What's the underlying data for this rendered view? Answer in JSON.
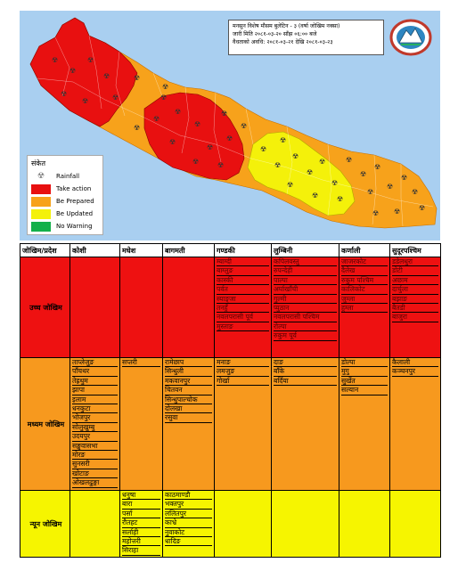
{
  "bulletin": {
    "line1": "मनसुन विशेष मौसम बुलेटिन - ३ (वर्षा जोखिम नक्सा)",
    "line2": "जारी मिति २०८१-०३-२० साँझ ०६:०० बजे",
    "line3": "वैधताको अवधि: २०८१-०३-२१ देखि २०८१-०३-२३"
  },
  "legend": {
    "title": "संकेत",
    "items": [
      {
        "label": "Rainfall",
        "icon": "rainfall-hazard-icon"
      },
      {
        "label": "Take action",
        "color": "#e81010"
      },
      {
        "label": "Be Prepared",
        "color": "#f7a21b"
      },
      {
        "label": "Be Updated",
        "color": "#f4f10a"
      },
      {
        "label": "No Warning",
        "color": "#13b04a"
      }
    ]
  },
  "colors": {
    "sea": "#a9cff0",
    "take_action": "#e81010",
    "be_prepared": "#f7a21b",
    "be_updated": "#f4f10a",
    "no_warning": "#13b04a"
  },
  "table": {
    "headers": [
      "जोखिम/प्रदेश",
      "कोशी",
      "मधेश",
      "बागमती",
      "गण्डकी",
      "लुम्बिनी",
      "कर्णाली",
      "सुदूरपश्चिम"
    ],
    "rows": [
      {
        "level": "उच्च जोखिम",
        "cells": [
          [],
          [],
          [],
          [
            "म्याग्दी",
            "बाग्लुङ",
            "कास्की",
            "पर्वत",
            "स्याङ्जा",
            "तनहुँ",
            "नवलपरासी पूर्व",
            "मुस्ताङ"
          ],
          [
            "कपिलवस्तु",
            "रुपन्देही",
            "पाल्पा",
            "अर्घाखाँची",
            "गुल्मी",
            "प्युठान",
            "नवलपरासी पश्चिम",
            "रोल्पा",
            "रुकुम पूर्व"
          ],
          [
            "जाजरकोट",
            "दैलेख",
            "रुकुम पश्चिम",
            "कालिकोट",
            "जुम्ला",
            "हुम्ला"
          ],
          [
            "डडेलधुरा",
            "डोटी",
            "अछाम",
            "दार्चुला",
            "बझाङ",
            "बैतडी",
            "बाजुरा"
          ]
        ]
      },
      {
        "level": "मध्यम जोखिम",
        "cells": [
          [
            "ताप्लेजुङ",
            "पाँचथर",
            "तेह्रथुम",
            "झापा",
            "इलाम",
            "धनकुटा",
            "भोजपुर",
            "सोलुखुम्बु",
            "उदयपुर",
            "सङ्खुवासभा",
            "मोरङ",
            "सुनसरी",
            "खोटाङ",
            "ओखलढुङ्गा"
          ],
          [
            "सप्तरी"
          ],
          [
            "रामेछाप",
            "सिन्धुली",
            "मकवानपुर",
            "चितवन",
            "सिन्धुपाल्चोक",
            "दोलखा",
            "रसुवा"
          ],
          [
            "मनाङ",
            "लमजुङ",
            "गोर्खा"
          ],
          [
            "दाङ",
            "बाँके",
            "बर्दिया"
          ],
          [
            "डोल्पा",
            "मुगु",
            "सुर्खेत",
            "सल्यान"
          ],
          [
            "कैलाली",
            "कञ्चनपुर"
          ]
        ]
      },
      {
        "level": "न्यून जोखिम",
        "cells": [
          [],
          [
            "धनुषा",
            "बारा",
            "पर्सा",
            "रौतहट",
            "सर्लाही",
            "महोत्तरी",
            "सिराहा"
          ],
          [
            "काठमाण्डौ",
            "भक्तपुर",
            "ललितपुर",
            "काभ्रे",
            "नुवाकोट",
            "धादिङ"
          ],
          [],
          [],
          [],
          []
        ]
      }
    ]
  }
}
